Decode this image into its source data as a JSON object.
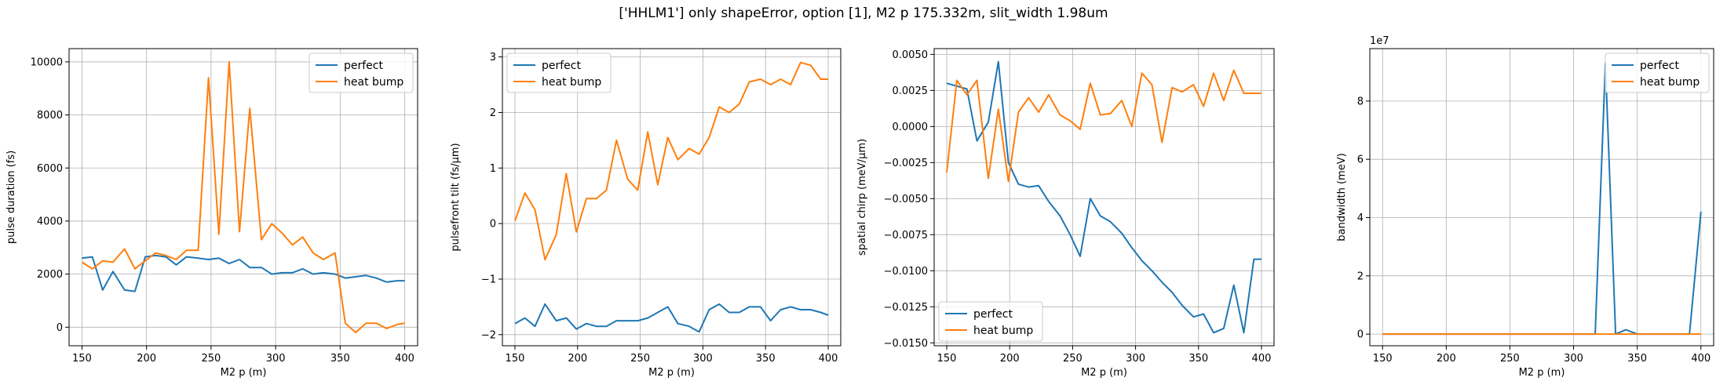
{
  "figure": {
    "title": "['HHLM1'] only shapeError, option [1], M2 p 175.332m, slit_width 1.98um"
  },
  "colors": {
    "perfect": "#1f77b4",
    "heat_bump": "#ff7f0e",
    "grid": "#b0b0b0"
  },
  "chart_data": [
    {
      "type": "line",
      "xlabel": "M2 p (m)",
      "ylabel": "pulse duration (fs)",
      "xlim": [
        140,
        410
      ],
      "ylim": [
        -700,
        10500
      ],
      "xticks": [
        150,
        200,
        250,
        300,
        350,
        400
      ],
      "xtick_labels": [
        "150",
        "200",
        "250",
        "300",
        "350",
        "400"
      ],
      "yticks": [
        0,
        2000,
        4000,
        6000,
        8000,
        10000
      ],
      "ytick_labels": [
        "0",
        "2000",
        "4000",
        "6000",
        "8000",
        "10000"
      ],
      "offset_text": "",
      "grid": true,
      "legend": "upper right",
      "x": [
        150,
        158,
        166,
        174,
        183,
        191,
        199,
        207,
        215,
        223,
        231,
        240,
        248,
        256,
        264,
        272,
        280,
        289,
        297,
        305,
        313,
        321,
        329,
        337,
        346,
        354,
        362,
        370,
        378,
        386,
        394,
        400
      ],
      "series": [
        {
          "name": "perfect",
          "color_key": "perfect",
          "values": [
            2600,
            2650,
            1400,
            2100,
            1400,
            1350,
            2650,
            2700,
            2650,
            2350,
            2650,
            2600,
            2550,
            2600,
            2400,
            2550,
            2250,
            2250,
            2000,
            2050,
            2050,
            2200,
            2000,
            2050,
            2000,
            1850,
            1900,
            1950,
            1850,
            1700,
            1750,
            1750
          ]
        },
        {
          "name": "heat bump",
          "color_key": "heat_bump",
          "values": [
            2450,
            2200,
            2500,
            2450,
            2950,
            2200,
            2500,
            2800,
            2700,
            2550,
            2900,
            2900,
            9400,
            3500,
            10000,
            3600,
            8250,
            3300,
            3900,
            3550,
            3100,
            3400,
            2800,
            2550,
            2800,
            150,
            -200,
            150,
            150,
            -50,
            100,
            150
          ]
        }
      ]
    },
    {
      "type": "line",
      "xlabel": "M2 p (m)",
      "ylabel": "pulsefront tilt (fs/μm)",
      "xlim": [
        140,
        410
      ],
      "ylim": [
        -2.2,
        3.15
      ],
      "xticks": [
        150,
        200,
        250,
        300,
        350,
        400
      ],
      "xtick_labels": [
        "150",
        "200",
        "250",
        "300",
        "350",
        "400"
      ],
      "yticks": [
        -2,
        -1,
        0,
        1,
        2,
        3
      ],
      "ytick_labels": [
        "−2",
        "−1",
        "0",
        "1",
        "2",
        "3"
      ],
      "offset_text": "",
      "grid": true,
      "legend": "upper left",
      "x": [
        150,
        158,
        166,
        174,
        183,
        191,
        199,
        207,
        215,
        223,
        231,
        240,
        248,
        256,
        264,
        272,
        280,
        289,
        297,
        305,
        313,
        321,
        329,
        337,
        346,
        354,
        362,
        370,
        378,
        386,
        394,
        400
      ],
      "series": [
        {
          "name": "perfect",
          "color_key": "perfect",
          "values": [
            -1.8,
            -1.7,
            -1.85,
            -1.45,
            -1.75,
            -1.7,
            -1.9,
            -1.8,
            -1.85,
            -1.85,
            -1.75,
            -1.75,
            -1.75,
            -1.7,
            -1.6,
            -1.5,
            -1.8,
            -1.85,
            -1.95,
            -1.55,
            -1.45,
            -1.6,
            -1.6,
            -1.5,
            -1.5,
            -1.75,
            -1.55,
            -1.5,
            -1.55,
            -1.55,
            -1.6,
            -1.65
          ]
        },
        {
          "name": "heat bump",
          "color_key": "heat_bump",
          "values": [
            0.05,
            0.55,
            0.25,
            -0.65,
            -0.2,
            0.9,
            -0.15,
            0.45,
            0.45,
            0.6,
            1.5,
            0.8,
            0.6,
            1.65,
            0.7,
            1.55,
            1.15,
            1.35,
            1.25,
            1.55,
            2.1,
            2.0,
            2.15,
            2.55,
            2.6,
            2.5,
            2.6,
            2.5,
            2.9,
            2.85,
            2.6,
            2.6
          ]
        }
      ]
    },
    {
      "type": "line",
      "xlabel": "M2 p (m)",
      "ylabel": "spatial chirp (meV/μm)",
      "xlim": [
        140,
        410
      ],
      "ylim": [
        -0.0152,
        0.0054
      ],
      "xticks": [
        150,
        200,
        250,
        300,
        350,
        400
      ],
      "xtick_labels": [
        "150",
        "200",
        "250",
        "300",
        "350",
        "400"
      ],
      "yticks": [
        -0.015,
        -0.0125,
        -0.01,
        -0.0075,
        -0.005,
        -0.0025,
        0,
        0.0025,
        0.005
      ],
      "ytick_labels": [
        "−0.0150",
        "−0.0125",
        "−0.0100",
        "−0.0075",
        "−0.0050",
        "−0.0025",
        "0.0000",
        "0.0025",
        "0.0050"
      ],
      "offset_text": "",
      "grid": true,
      "legend": "lower left",
      "x": [
        150,
        158,
        166,
        174,
        183,
        191,
        199,
        207,
        215,
        223,
        231,
        240,
        248,
        256,
        264,
        272,
        280,
        289,
        297,
        305,
        313,
        321,
        329,
        337,
        346,
        354,
        362,
        370,
        378,
        386,
        394,
        400
      ],
      "series": [
        {
          "name": "perfect",
          "color_key": "perfect",
          "values": [
            0.003,
            0.0028,
            0.0026,
            -0.001,
            0.0003,
            0.0045,
            -0.0025,
            -0.004,
            -0.0042,
            -0.0041,
            -0.0052,
            -0.0062,
            -0.0075,
            -0.009,
            -0.005,
            -0.0062,
            -0.0066,
            -0.0074,
            -0.0084,
            -0.0093,
            -0.01,
            -0.0108,
            -0.0115,
            -0.0124,
            -0.0132,
            -0.013,
            -0.0143,
            -0.014,
            -0.011,
            -0.0143,
            -0.0092,
            -0.0092
          ]
        },
        {
          "name": "heat bump",
          "color_key": "heat_bump",
          "values": [
            -0.0032,
            0.0032,
            0.0022,
            0.0032,
            -0.0036,
            0.0012,
            -0.0038,
            0.001,
            0.002,
            0.001,
            0.0022,
            0.0008,
            0.0004,
            -0.0002,
            0.003,
            0.0008,
            0.0009,
            0.0018,
            0.0,
            0.0037,
            0.0029,
            -0.0011,
            0.0027,
            0.0024,
            0.0029,
            0.0014,
            0.0037,
            0.0018,
            0.0039,
            0.0023,
            0.0023,
            0.0023
          ]
        }
      ]
    },
    {
      "type": "line",
      "xlabel": "M2 p (m)",
      "ylabel": "bandwidth (meV)",
      "xlim": [
        140,
        410
      ],
      "ylim": [
        -0.4,
        9.8
      ],
      "xticks": [
        150,
        200,
        250,
        300,
        350,
        400
      ],
      "xtick_labels": [
        "150",
        "200",
        "250",
        "300",
        "350",
        "400"
      ],
      "yticks": [
        0,
        2,
        4,
        6,
        8
      ],
      "ytick_labels": [
        "0",
        "2",
        "4",
        "6",
        "8"
      ],
      "offset_text": "1e7",
      "grid": true,
      "legend": "upper right",
      "x": [
        150,
        158,
        166,
        174,
        183,
        191,
        199,
        207,
        215,
        223,
        231,
        240,
        248,
        256,
        264,
        272,
        280,
        289,
        297,
        305,
        313,
        317,
        325,
        333,
        341,
        350,
        358,
        366,
        374,
        382,
        391,
        400
      ],
      "series": [
        {
          "name": "perfect",
          "color_key": "perfect",
          "values": [
            0,
            0,
            0,
            0,
            0,
            0,
            0,
            0,
            0,
            0,
            0,
            0,
            0,
            0,
            0,
            0,
            0,
            0,
            0,
            0,
            0,
            0,
            9.3,
            0,
            0.15,
            0,
            0,
            0,
            0,
            0,
            0,
            4.2
          ]
        },
        {
          "name": "heat bump",
          "color_key": "heat_bump",
          "values": [
            0,
            0,
            0,
            0,
            0,
            0,
            0,
            0,
            0,
            0,
            0,
            0,
            0,
            0,
            0,
            0,
            0,
            0,
            0,
            0,
            0,
            0,
            0,
            0,
            0,
            0,
            0,
            0,
            0,
            0,
            0,
            0
          ]
        }
      ]
    }
  ]
}
